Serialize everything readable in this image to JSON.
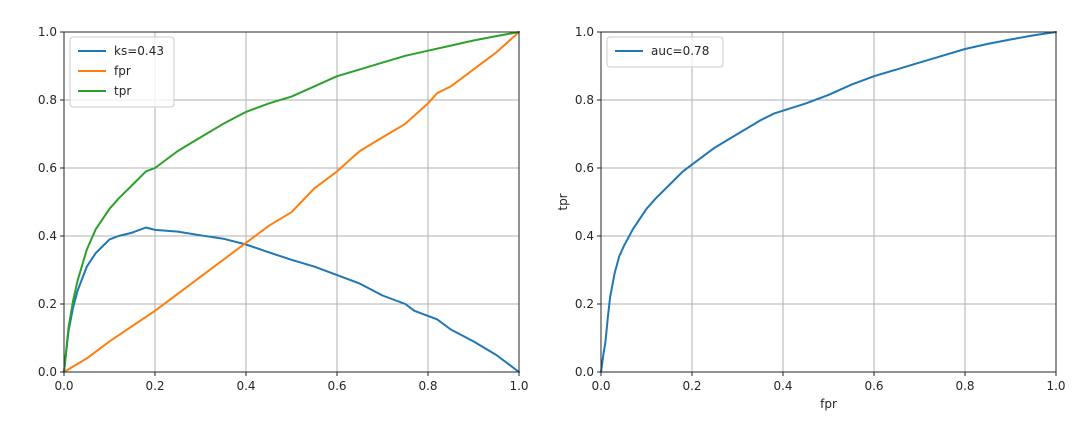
{
  "chart_data": [
    {
      "type": "line",
      "xlim": [
        0,
        1
      ],
      "ylim": [
        0,
        1
      ],
      "grid": true,
      "legend_location": "top-left",
      "xticks": [
        "0.0",
        "0.2",
        "0.4",
        "0.6",
        "0.8",
        "1.0"
      ],
      "yticks": [
        "0.0",
        "0.2",
        "0.4",
        "0.6",
        "0.8",
        "1.0"
      ],
      "xlabel": "",
      "ylabel": "",
      "series": [
        {
          "name": "ks=0.43",
          "color": "#1f77b4",
          "x": [
            0,
            0.01,
            0.02,
            0.03,
            0.05,
            0.07,
            0.1,
            0.12,
            0.15,
            0.18,
            0.2,
            0.25,
            0.3,
            0.35,
            0.4,
            0.45,
            0.5,
            0.55,
            0.6,
            0.65,
            0.7,
            0.75,
            0.77,
            0.8,
            0.82,
            0.85,
            0.9,
            0.95,
            1.0
          ],
          "y": [
            0,
            0.12,
            0.19,
            0.24,
            0.31,
            0.35,
            0.39,
            0.4,
            0.41,
            0.425,
            0.418,
            0.413,
            0.402,
            0.392,
            0.375,
            0.352,
            0.33,
            0.31,
            0.285,
            0.26,
            0.225,
            0.2,
            0.18,
            0.165,
            0.155,
            0.125,
            0.09,
            0.05,
            0.0
          ]
        },
        {
          "name": "fpr",
          "color": "#ff7f0e",
          "x": [
            0,
            0.05,
            0.1,
            0.2,
            0.3,
            0.4,
            0.45,
            0.5,
            0.55,
            0.6,
            0.65,
            0.7,
            0.75,
            0.8,
            0.82,
            0.85,
            0.9,
            0.95,
            1.0
          ],
          "y": [
            0,
            0.04,
            0.09,
            0.18,
            0.28,
            0.38,
            0.43,
            0.47,
            0.54,
            0.59,
            0.65,
            0.69,
            0.73,
            0.79,
            0.82,
            0.84,
            0.89,
            0.94,
            1.0
          ]
        },
        {
          "name": "tpr",
          "color": "#2ca02c",
          "x": [
            0,
            0.01,
            0.02,
            0.03,
            0.05,
            0.07,
            0.1,
            0.12,
            0.15,
            0.18,
            0.2,
            0.25,
            0.3,
            0.35,
            0.4,
            0.45,
            0.5,
            0.55,
            0.6,
            0.65,
            0.7,
            0.75,
            0.8,
            0.85,
            0.9,
            0.95,
            1.0
          ],
          "y": [
            0,
            0.13,
            0.21,
            0.27,
            0.36,
            0.42,
            0.48,
            0.51,
            0.55,
            0.59,
            0.6,
            0.65,
            0.69,
            0.73,
            0.765,
            0.79,
            0.81,
            0.84,
            0.87,
            0.89,
            0.91,
            0.93,
            0.945,
            0.96,
            0.975,
            0.988,
            1.0
          ]
        }
      ]
    },
    {
      "type": "line",
      "xlim": [
        0,
        1
      ],
      "ylim": [
        0,
        1
      ],
      "grid": true,
      "legend_location": "top-left",
      "xticks": [
        "0.0",
        "0.2",
        "0.4",
        "0.6",
        "0.8",
        "1.0"
      ],
      "yticks": [
        "0.0",
        "0.2",
        "0.4",
        "0.6",
        "0.8",
        "1.0"
      ],
      "xlabel": "fpr",
      "ylabel": "tpr",
      "series": [
        {
          "name": "auc=0.78",
          "color": "#1f77b4",
          "x": [
            0,
            0.005,
            0.01,
            0.015,
            0.02,
            0.03,
            0.04,
            0.05,
            0.07,
            0.1,
            0.12,
            0.15,
            0.18,
            0.2,
            0.25,
            0.3,
            0.35,
            0.38,
            0.45,
            0.5,
            0.55,
            0.6,
            0.65,
            0.7,
            0.75,
            0.8,
            0.85,
            0.9,
            0.95,
            1.0
          ],
          "y": [
            0,
            0.05,
            0.09,
            0.16,
            0.22,
            0.29,
            0.34,
            0.37,
            0.42,
            0.48,
            0.51,
            0.55,
            0.59,
            0.61,
            0.66,
            0.7,
            0.74,
            0.76,
            0.79,
            0.815,
            0.845,
            0.87,
            0.89,
            0.91,
            0.93,
            0.95,
            0.965,
            0.978,
            0.99,
            1.0
          ]
        }
      ]
    }
  ]
}
